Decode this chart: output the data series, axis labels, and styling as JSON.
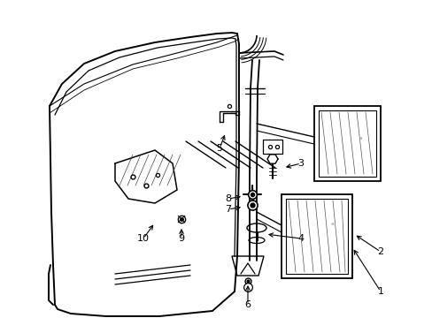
{
  "background_color": "#ffffff",
  "line_color": "#000000",
  "fig_width": 4.89,
  "fig_height": 3.6,
  "dpi": 100,
  "label_fontsize": 8,
  "parts_labels": [
    "1",
    "2",
    "3",
    "4",
    "5",
    "6",
    "7",
    "8",
    "9",
    "10"
  ]
}
